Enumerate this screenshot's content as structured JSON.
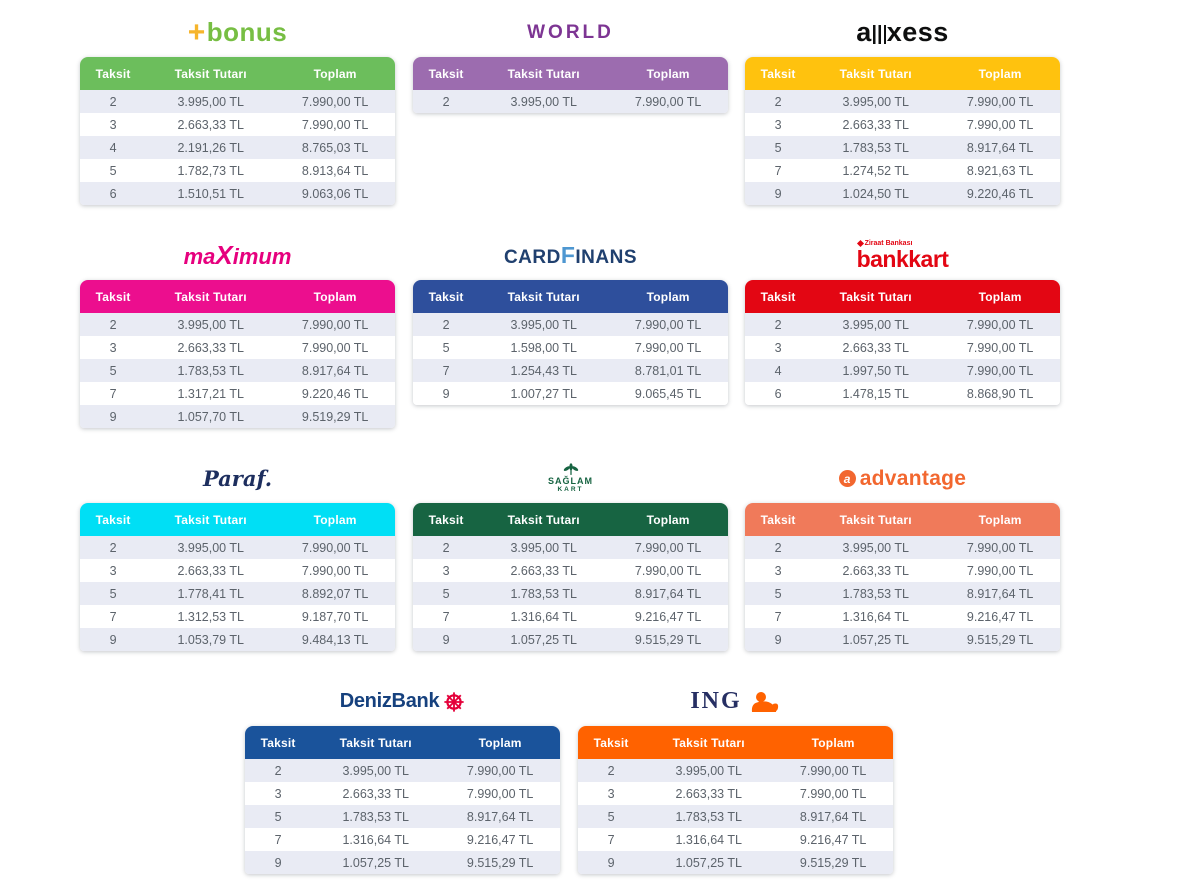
{
  "ui": {
    "row_alt": "#E9EBF4",
    "row_bg": "#FFFFFF",
    "cell_text": "#5C636B",
    "header_text": "#FFFFFF",
    "page_bg": "#FFFFFF"
  },
  "columns": [
    "Taksit",
    "Taksit Tutarı",
    "Toplam"
  ],
  "tables": [
    {
      "id": "bonus",
      "header_color": "#6CBE5C",
      "logo": {
        "plus": "+",
        "text": "bonus"
      },
      "colors": {
        "plus": "#F6B52C",
        "text": "#77BE43"
      },
      "rows": [
        [
          "2",
          "3.995,00 TL",
          "7.990,00 TL"
        ],
        [
          "3",
          "2.663,33 TL",
          "7.990,00 TL"
        ],
        [
          "4",
          "2.191,26 TL",
          "8.765,03 TL"
        ],
        [
          "5",
          "1.782,73 TL",
          "8.913,64 TL"
        ],
        [
          "6",
          "1.510,51 TL",
          "9.063,06 TL"
        ]
      ]
    },
    {
      "id": "world",
      "header_color": "#9C6CAF",
      "logo": {
        "text": "WORLD"
      },
      "colors": {
        "text": "#7D3593"
      },
      "rows": [
        [
          "2",
          "3.995,00 TL",
          "7.990,00 TL"
        ]
      ]
    },
    {
      "id": "axess",
      "header_color": "#FFC20E",
      "logo": {
        "a": "a",
        "rest": "xess"
      },
      "colors": {
        "text": "#0E0F0F"
      },
      "rows": [
        [
          "2",
          "3.995,00 TL",
          "7.990,00 TL"
        ],
        [
          "3",
          "2.663,33 TL",
          "7.990,00 TL"
        ],
        [
          "5",
          "1.783,53 TL",
          "8.917,64 TL"
        ],
        [
          "7",
          "1.274,52 TL",
          "8.921,63 TL"
        ],
        [
          "9",
          "1.024,50 TL",
          "9.220,46 TL"
        ]
      ]
    },
    {
      "id": "maximum",
      "header_color": "#EC0E8E",
      "logo": {
        "pre": "ma",
        "x": "X",
        "post": "imum"
      },
      "colors": {
        "text": "#E6007E"
      },
      "rows": [
        [
          "2",
          "3.995,00 TL",
          "7.990,00 TL"
        ],
        [
          "3",
          "2.663,33 TL",
          "7.990,00 TL"
        ],
        [
          "5",
          "1.783,53 TL",
          "8.917,64 TL"
        ],
        [
          "7",
          "1.317,21 TL",
          "9.220,46 TL"
        ],
        [
          "9",
          "1.057,70 TL",
          "9.519,29 TL"
        ]
      ]
    },
    {
      "id": "cardfinans",
      "header_color": "#2E4F9C",
      "logo": {
        "card": "CARD",
        "f": "F",
        "inans": "INANS"
      },
      "colors": {
        "card": "#20406F",
        "f": "#4E97D1",
        "inans": "#20406F"
      },
      "rows": [
        [
          "2",
          "3.995,00 TL",
          "7.990,00 TL"
        ],
        [
          "5",
          "1.598,00 TL",
          "7.990,00 TL"
        ],
        [
          "7",
          "1.254,43 TL",
          "8.781,01 TL"
        ],
        [
          "9",
          "1.007,27 TL",
          "9.065,45 TL"
        ]
      ]
    },
    {
      "id": "bankkart",
      "header_color": "#E30613",
      "logo": {
        "top": "Ziraat Bankası",
        "text": "bankkart"
      },
      "colors": {
        "text": "#E30613"
      },
      "rows": [
        [
          "2",
          "3.995,00 TL",
          "7.990,00 TL"
        ],
        [
          "3",
          "2.663,33 TL",
          "7.990,00 TL"
        ],
        [
          "4",
          "1.997,50 TL",
          "7.990,00 TL"
        ],
        [
          "6",
          "1.478,15 TL",
          "8.868,90 TL"
        ]
      ]
    },
    {
      "id": "paraf",
      "header_color": "#00DFF5",
      "logo": {
        "text": "Paraf."
      },
      "colors": {
        "text": "#1D2E5E"
      },
      "rows": [
        [
          "2",
          "3.995,00 TL",
          "7.990,00 TL"
        ],
        [
          "3",
          "2.663,33 TL",
          "7.990,00 TL"
        ],
        [
          "5",
          "1.778,41 TL",
          "8.892,07 TL"
        ],
        [
          "7",
          "1.312,53 TL",
          "9.187,70 TL"
        ],
        [
          "9",
          "1.053,79 TL",
          "9.484,13 TL"
        ]
      ]
    },
    {
      "id": "saglamkart",
      "header_color": "#176442",
      "logo": {
        "line1": "SAĞLAM",
        "line2": "KART"
      },
      "colors": {
        "text": "#176442"
      },
      "rows": [
        [
          "2",
          "3.995,00 TL",
          "7.990,00 TL"
        ],
        [
          "3",
          "2.663,33 TL",
          "7.990,00 TL"
        ],
        [
          "5",
          "1.783,53 TL",
          "8.917,64 TL"
        ],
        [
          "7",
          "1.316,64 TL",
          "9.216,47 TL"
        ],
        [
          "9",
          "1.057,25 TL",
          "9.515,29 TL"
        ]
      ]
    },
    {
      "id": "advantage",
      "header_color": "#F07A5A",
      "logo": {
        "icon": "a",
        "text": "advantage"
      },
      "colors": {
        "text": "#F2672F",
        "icon_bg": "#F2672F",
        "icon_fg": "#FFFFFF"
      },
      "rows": [
        [
          "2",
          "3.995,00 TL",
          "7.990,00 TL"
        ],
        [
          "3",
          "2.663,33 TL",
          "7.990,00 TL"
        ],
        [
          "5",
          "1.783,53 TL",
          "8.917,64 TL"
        ],
        [
          "7",
          "1.316,64 TL",
          "9.216,47 TL"
        ],
        [
          "9",
          "1.057,25 TL",
          "9.515,29 TL"
        ]
      ]
    },
    {
      "id": "denizbank",
      "header_color": "#1A539B",
      "logo": {
        "text": "DenizBank"
      },
      "colors": {
        "text": "#16417E",
        "wheel": "#E4003A"
      },
      "rows": [
        [
          "2",
          "3.995,00 TL",
          "7.990,00 TL"
        ],
        [
          "3",
          "2.663,33 TL",
          "7.990,00 TL"
        ],
        [
          "5",
          "1.783,53 TL",
          "8.917,64 TL"
        ],
        [
          "7",
          "1.316,64 TL",
          "9.216,47 TL"
        ],
        [
          "9",
          "1.057,25 TL",
          "9.515,29 TL"
        ]
      ]
    },
    {
      "id": "ing",
      "header_color": "#FF6200",
      "logo": {
        "text": "ING"
      },
      "colors": {
        "text": "#262F63",
        "lion": "#FF6200"
      },
      "rows": [
        [
          "2",
          "3.995,00 TL",
          "7.990,00 TL"
        ],
        [
          "3",
          "2.663,33 TL",
          "7.990,00 TL"
        ],
        [
          "5",
          "1.783,53 TL",
          "8.917,64 TL"
        ],
        [
          "7",
          "1.316,64 TL",
          "9.216,47 TL"
        ],
        [
          "9",
          "1.057,25 TL",
          "9.515,29 TL"
        ]
      ]
    }
  ]
}
